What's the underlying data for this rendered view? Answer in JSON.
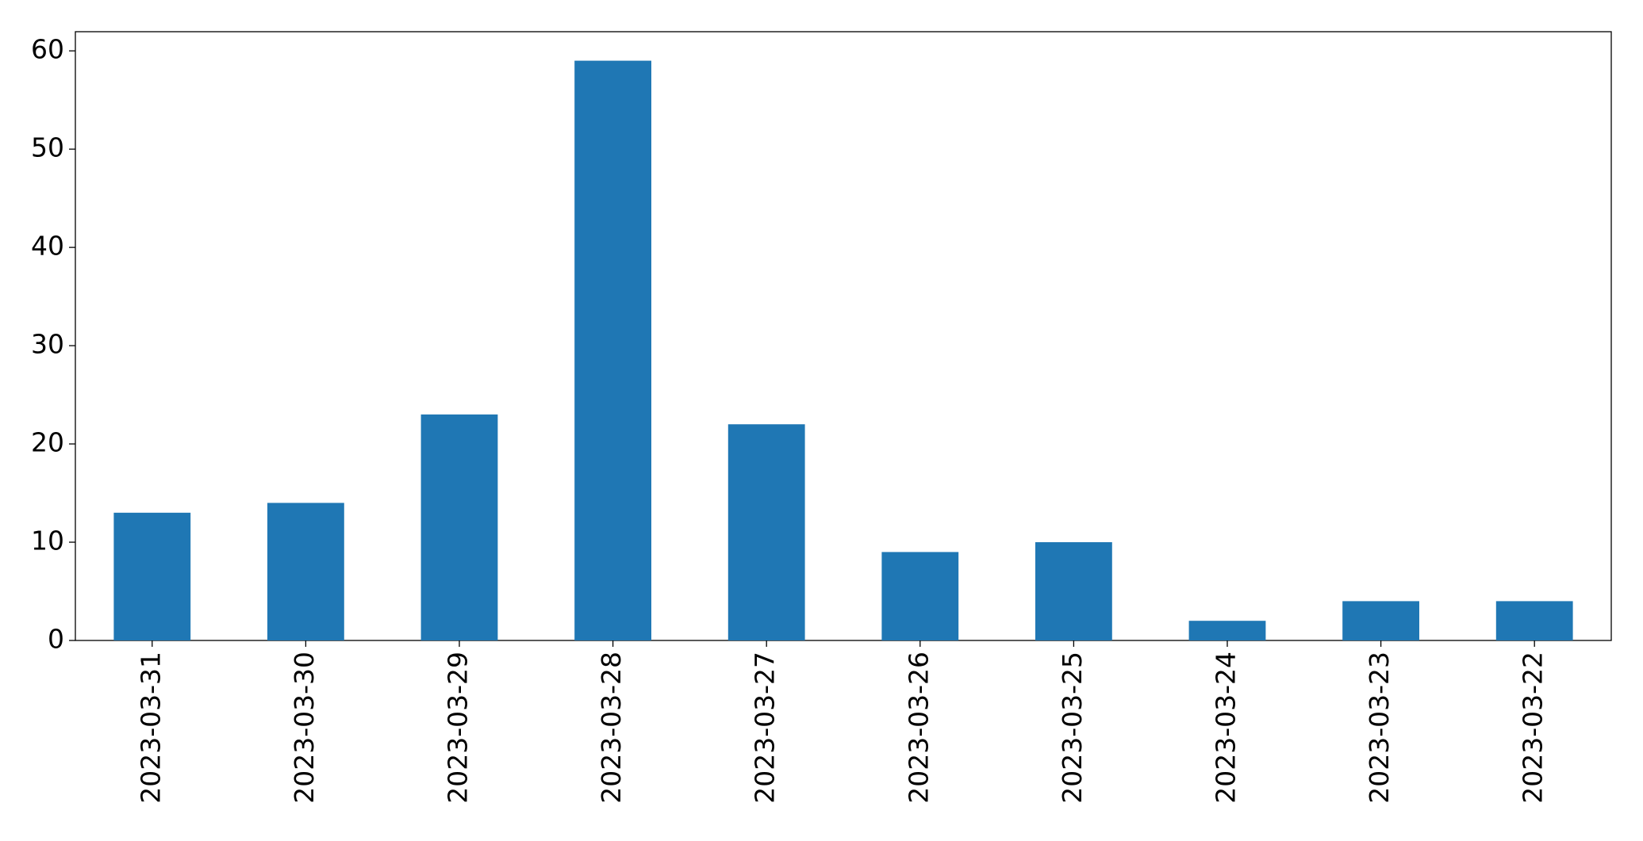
{
  "chart_data": {
    "type": "bar",
    "categories": [
      "2023-03-31",
      "2023-03-30",
      "2023-03-29",
      "2023-03-28",
      "2023-03-27",
      "2023-03-26",
      "2023-03-25",
      "2023-03-24",
      "2023-03-23",
      "2023-03-22"
    ],
    "values": [
      13,
      14,
      23,
      59,
      22,
      9,
      10,
      2,
      4,
      4
    ],
    "color": "#1f77b4",
    "ylim": [
      0,
      61.95
    ],
    "yticks": [
      0,
      10,
      20,
      30,
      40,
      50,
      60
    ],
    "grid": false
  }
}
